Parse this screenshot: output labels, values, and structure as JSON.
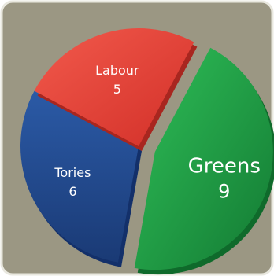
{
  "chart_data": {
    "type": "pie",
    "title": "",
    "categories": [
      "Greens",
      "Tories",
      "Labour"
    ],
    "values": [
      9,
      6,
      5
    ],
    "series": [
      {
        "name": "Greens",
        "value": 9,
        "color": "#1f9a43",
        "exploded": true
      },
      {
        "name": "Tories",
        "value": 6,
        "color": "#234b8e",
        "exploded": false
      },
      {
        "name": "Labour",
        "value": 5,
        "color": "#e8403a",
        "exploded": false
      }
    ],
    "legend": "none",
    "data_labels": "inside-slices"
  },
  "colors": {
    "background": "#9b9783",
    "border": "#e9e8df"
  }
}
